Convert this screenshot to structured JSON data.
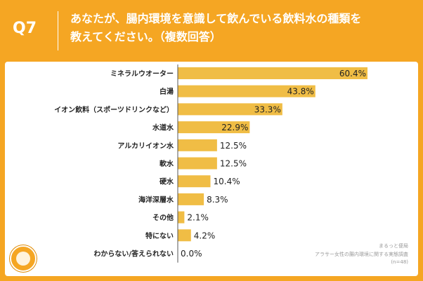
{
  "header": {
    "question_number": "Q7",
    "title_line1": "あなたが、腸内環境を意識して飲んでいる飲料水の種類を",
    "title_line2": "教えてください。（複数回答）"
  },
  "chart_data": {
    "type": "bar",
    "orientation": "horizontal",
    "categories": [
      "ミネラルウオーター",
      "白湯",
      "イオン飲料（スポーツドリンクなど）",
      "水道水",
      "アルカリイオン水",
      "軟水",
      "硬水",
      "海洋深層水",
      "その他",
      "特にない",
      "わからない/答えられない"
    ],
    "values": [
      60.4,
      43.8,
      33.3,
      22.9,
      12.5,
      12.5,
      10.4,
      8.3,
      2.1,
      4.2,
      0.0
    ],
    "value_labels": [
      "60.4%",
      "43.8%",
      "33.3%",
      "22.9%",
      "12.5%",
      "12.5%",
      "10.4%",
      "8.3%",
      "2.1%",
      "4.2%",
      "0.0%"
    ],
    "xlim": [
      0,
      65
    ],
    "grid": false,
    "bar_color": "#f0bd45"
  },
  "source": {
    "line1": "まるっと便局",
    "line2": "アラサー女性の腸内環境に関する実態調査",
    "line3": "(n=48)"
  },
  "colors": {
    "background": "#f5a623",
    "bar": "#f0bd45",
    "text": "#222222"
  }
}
